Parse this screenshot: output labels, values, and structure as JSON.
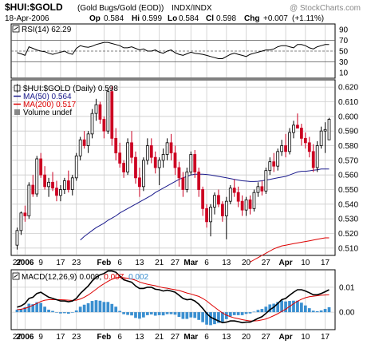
{
  "header": {
    "symbol": "$HUI:$GOLD",
    "name": "(Gold Bugs/Gold (EOD))",
    "exchange": "INDX/INDX",
    "watermark": "@ StockCharts.com",
    "date": "18-Apr-2006",
    "op_label": "Op",
    "op": "0.584",
    "hi_label": "Hi",
    "hi": "0.599",
    "lo_label": "Lo",
    "lo": "0.584",
    "cl_label": "Cl",
    "cl": "0.598",
    "chg_label": "Chg",
    "chg": "+0.007",
    "chg_pct": "(+1.11%)"
  },
  "colors": {
    "up": "#000000",
    "down": "#cc0022",
    "ma50": "#1a1a8c",
    "ma200": "#dd0000",
    "macd": "#000000",
    "signal": "#dd0000",
    "hist": "#3a8fd0",
    "grid": "#cccccc"
  },
  "x_axis": {
    "ticks": [
      {
        "label": "27",
        "i": 0
      },
      {
        "label": "2006",
        "i": 2,
        "bold": true
      },
      {
        "label": "9",
        "i": 6
      },
      {
        "label": "17",
        "i": 11
      },
      {
        "label": "23",
        "i": 15
      },
      {
        "label": "Feb",
        "i": 22,
        "bold": true
      },
      {
        "label": "6",
        "i": 26
      },
      {
        "label": "13",
        "i": 31
      },
      {
        "label": "21",
        "i": 36
      },
      {
        "label": "27",
        "i": 40
      },
      {
        "label": "Mar",
        "i": 44,
        "bold": true
      },
      {
        "label": "6",
        "i": 48
      },
      {
        "label": "13",
        "i": 53
      },
      {
        "label": "20",
        "i": 58
      },
      {
        "label": "27",
        "i": 63
      },
      {
        "label": "Apr",
        "i": 68,
        "bold": true
      },
      {
        "label": "10",
        "i": 73
      },
      {
        "label": "17",
        "i": 78
      }
    ]
  },
  "chart_data": [
    {
      "type": "line",
      "title": "RSI(14) 62.29",
      "ylim": [
        0,
        100
      ],
      "yticks": [
        10,
        30,
        50,
        70,
        90
      ],
      "ref_lines": [
        30,
        50,
        70
      ],
      "series": [
        {
          "name": "RSI(14)",
          "values": [
            47,
            45,
            42,
            58,
            55,
            52,
            50,
            49,
            46,
            44,
            46,
            48,
            50,
            46,
            44,
            55,
            60,
            58,
            57,
            59,
            62,
            64,
            66,
            66,
            64,
            62,
            60,
            56,
            56,
            58,
            55,
            52,
            54,
            50,
            50,
            52,
            48,
            46,
            50,
            52,
            47,
            44,
            42,
            45,
            48,
            46,
            45,
            44,
            42,
            40,
            38,
            36,
            36,
            40,
            44,
            46,
            44,
            42,
            40,
            44,
            46,
            48,
            50,
            52,
            52,
            54,
            58,
            60,
            60,
            58,
            56,
            62,
            62,
            60,
            56,
            54,
            58,
            60,
            62,
            62
          ]
        }
      ]
    },
    {
      "type": "candlestick",
      "title": "$HUI:$GOLD (Daily) 0.598",
      "ylim": [
        0.505,
        0.625
      ],
      "yticks": [
        0.51,
        0.52,
        0.53,
        0.54,
        0.55,
        0.56,
        0.57,
        0.58,
        0.59,
        0.6,
        0.61,
        0.62
      ],
      "legend": [
        {
          "label": "$HUI:$GOLD (Daily) 0.598",
          "color_key": "up"
        },
        {
          "label": "MA(50) 0.564",
          "color_key": "ma50"
        },
        {
          "label": "MA(200) 0.517",
          "color_key": "ma200"
        },
        {
          "label": "Volume undef",
          "color_key": "up"
        }
      ],
      "ohlc": [
        [
          0.512,
          0.524,
          0.509,
          0.522
        ],
        [
          0.522,
          0.535,
          0.519,
          0.534
        ],
        [
          0.534,
          0.539,
          0.528,
          0.532
        ],
        [
          0.532,
          0.555,
          0.53,
          0.553
        ],
        [
          0.553,
          0.56,
          0.545,
          0.547
        ],
        [
          0.547,
          0.573,
          0.545,
          0.571
        ],
        [
          0.571,
          0.575,
          0.558,
          0.56
        ],
        [
          0.56,
          0.566,
          0.55,
          0.552
        ],
        [
          0.552,
          0.558,
          0.545,
          0.555
        ],
        [
          0.555,
          0.562,
          0.549,
          0.551
        ],
        [
          0.551,
          0.556,
          0.542,
          0.546
        ],
        [
          0.546,
          0.553,
          0.542,
          0.55
        ],
        [
          0.55,
          0.558,
          0.547,
          0.556
        ],
        [
          0.556,
          0.563,
          0.548,
          0.55
        ],
        [
          0.55,
          0.56,
          0.546,
          0.558
        ],
        [
          0.558,
          0.575,
          0.556,
          0.573
        ],
        [
          0.573,
          0.586,
          0.57,
          0.584
        ],
        [
          0.584,
          0.59,
          0.578,
          0.58
        ],
        [
          0.58,
          0.59,
          0.575,
          0.588
        ],
        [
          0.588,
          0.605,
          0.585,
          0.602
        ],
        [
          0.602,
          0.612,
          0.597,
          0.608
        ],
        [
          0.608,
          0.61,
          0.595,
          0.598
        ],
        [
          0.598,
          0.6,
          0.585,
          0.59
        ],
        [
          0.59,
          0.619,
          0.588,
          0.617
        ],
        [
          0.617,
          0.621,
          0.58,
          0.585
        ],
        [
          0.585,
          0.592,
          0.57,
          0.575
        ],
        [
          0.575,
          0.582,
          0.565,
          0.568
        ],
        [
          0.568,
          0.57,
          0.558,
          0.562
        ],
        [
          0.562,
          0.585,
          0.56,
          0.582
        ],
        [
          0.582,
          0.59,
          0.568,
          0.572
        ],
        [
          0.572,
          0.576,
          0.554,
          0.558
        ],
        [
          0.558,
          0.565,
          0.545,
          0.552
        ],
        [
          0.552,
          0.572,
          0.549,
          0.57
        ],
        [
          0.57,
          0.585,
          0.567,
          0.58
        ],
        [
          0.58,
          0.585,
          0.568,
          0.572
        ],
        [
          0.572,
          0.576,
          0.561,
          0.565
        ],
        [
          0.565,
          0.572,
          0.553,
          0.57
        ],
        [
          0.57,
          0.578,
          0.565,
          0.574
        ],
        [
          0.574,
          0.585,
          0.57,
          0.582
        ],
        [
          0.582,
          0.588,
          0.57,
          0.575
        ],
        [
          0.575,
          0.58,
          0.56,
          0.565
        ],
        [
          0.565,
          0.569,
          0.552,
          0.558
        ],
        [
          0.558,
          0.562,
          0.545,
          0.55
        ],
        [
          0.55,
          0.565,
          0.548,
          0.562
        ],
        [
          0.562,
          0.576,
          0.56,
          0.574
        ],
        [
          0.574,
          0.577,
          0.558,
          0.562
        ],
        [
          0.562,
          0.565,
          0.545,
          0.55
        ],
        [
          0.55,
          0.552,
          0.532,
          0.537
        ],
        [
          0.537,
          0.54,
          0.524,
          0.528
        ],
        [
          0.528,
          0.54,
          0.518,
          0.538
        ],
        [
          0.538,
          0.548,
          0.533,
          0.546
        ],
        [
          0.546,
          0.55,
          0.538,
          0.54
        ],
        [
          0.54,
          0.542,
          0.528,
          0.532
        ],
        [
          0.532,
          0.545,
          0.516,
          0.542
        ],
        [
          0.542,
          0.553,
          0.54,
          0.551
        ],
        [
          0.551,
          0.557,
          0.545,
          0.548
        ],
        [
          0.548,
          0.552,
          0.538,
          0.542
        ],
        [
          0.542,
          0.546,
          0.532,
          0.536
        ],
        [
          0.536,
          0.545,
          0.532,
          0.543
        ],
        [
          0.543,
          0.546,
          0.533,
          0.537
        ],
        [
          0.537,
          0.55,
          0.535,
          0.548
        ],
        [
          0.548,
          0.555,
          0.545,
          0.552
        ],
        [
          0.552,
          0.556,
          0.546,
          0.549
        ],
        [
          0.549,
          0.565,
          0.547,
          0.563
        ],
        [
          0.563,
          0.572,
          0.56,
          0.569
        ],
        [
          0.569,
          0.575,
          0.562,
          0.566
        ],
        [
          0.566,
          0.578,
          0.563,
          0.576
        ],
        [
          0.576,
          0.584,
          0.573,
          0.58
        ],
        [
          0.58,
          0.588,
          0.572,
          0.576
        ],
        [
          0.576,
          0.592,
          0.574,
          0.589
        ],
        [
          0.589,
          0.597,
          0.585,
          0.594
        ],
        [
          0.594,
          0.602,
          0.592,
          0.592
        ],
        [
          0.592,
          0.595,
          0.58,
          0.585
        ],
        [
          0.585,
          0.589,
          0.578,
          0.582
        ],
        [
          0.582,
          0.586,
          0.572,
          0.576
        ],
        [
          0.576,
          0.581,
          0.562,
          0.565
        ],
        [
          0.565,
          0.583,
          0.562,
          0.58
        ],
        [
          0.58,
          0.593,
          0.578,
          0.59
        ],
        [
          0.59,
          0.596,
          0.575,
          0.591
        ],
        [
          0.584,
          0.599,
          0.584,
          0.598
        ]
      ],
      "ma50": [
        null,
        null,
        null,
        null,
        null,
        null,
        null,
        null,
        null,
        null,
        null,
        null,
        null,
        null,
        null,
        null,
        0.5155,
        0.518,
        0.52,
        0.522,
        0.524,
        0.5255,
        0.527,
        0.529,
        0.5305,
        0.532,
        0.534,
        0.5355,
        0.537,
        0.5385,
        0.54,
        0.5415,
        0.543,
        0.5445,
        0.546,
        0.548,
        0.5495,
        0.551,
        0.5525,
        0.554,
        0.5555,
        0.557,
        0.558,
        0.559,
        0.56,
        0.5605,
        0.5605,
        0.5605,
        0.5603,
        0.56,
        0.5595,
        0.559,
        0.5585,
        0.558,
        0.5575,
        0.557,
        0.5565,
        0.556,
        0.5558,
        0.5555,
        0.5555,
        0.5557,
        0.556,
        0.5565,
        0.557,
        0.5575,
        0.558,
        0.5585,
        0.559,
        0.56,
        0.561,
        0.562,
        0.5625,
        0.5625,
        0.5628,
        0.5632,
        0.5635,
        0.564,
        0.564,
        0.564
      ],
      "ma200": [
        null,
        null,
        null,
        null,
        null,
        null,
        null,
        null,
        null,
        null,
        null,
        null,
        null,
        null,
        null,
        null,
        null,
        null,
        null,
        null,
        null,
        null,
        null,
        null,
        null,
        null,
        null,
        null,
        null,
        null,
        null,
        null,
        null,
        null,
        null,
        null,
        null,
        null,
        null,
        null,
        null,
        null,
        null,
        null,
        null,
        null,
        null,
        null,
        null,
        null,
        null,
        null,
        null,
        null,
        null,
        null,
        null,
        null,
        null,
        0.5005,
        0.502,
        0.5035,
        0.505,
        0.5065,
        0.508,
        0.5095,
        0.5105,
        0.5115,
        0.512,
        0.5125,
        0.513,
        0.5135,
        0.514,
        0.5145,
        0.515,
        0.5155,
        0.516,
        0.5165,
        0.517,
        0.517
      ]
    },
    {
      "type": "line",
      "title": "MACD(12,26,9)",
      "title_values": [
        "0.009,",
        "0.007,",
        "0.002"
      ],
      "ylim": [
        -0.007,
        0.017
      ],
      "yticks": [
        0,
        0.01
      ],
      "ytick_labels": [
        "0.00",
        "0.01"
      ],
      "series": [
        {
          "name": "MACD(12,26,9)",
          "color_key": "macd",
          "values": [
            0.002,
            0.0025,
            0.0035,
            0.0055,
            0.006,
            0.0075,
            0.008,
            0.007,
            0.006,
            0.0055,
            0.005,
            0.0045,
            0.0045,
            0.0042,
            0.0045,
            0.0055,
            0.0075,
            0.009,
            0.0105,
            0.0125,
            0.014,
            0.015,
            0.0155,
            0.0165,
            0.0165,
            0.016,
            0.0145,
            0.013,
            0.0125,
            0.012,
            0.0105,
            0.0095,
            0.0095,
            0.01,
            0.01,
            0.0092,
            0.009,
            0.0085,
            0.0088,
            0.0085,
            0.008,
            0.0068,
            0.0055,
            0.005,
            0.0052,
            0.0045,
            0.0032,
            0.0015,
            -0.0005,
            -0.002,
            -0.0028,
            -0.0035,
            -0.0042,
            -0.004,
            -0.0035,
            -0.0035,
            -0.0038,
            -0.0042,
            -0.004,
            -0.004,
            -0.0033,
            -0.0025,
            -0.0018,
            -0.0005,
            0.001,
            0.002,
            0.0035,
            0.005,
            0.0055,
            0.0068,
            0.008,
            0.009,
            0.009,
            0.0085,
            0.0078,
            0.007,
            0.007,
            0.0075,
            0.0082,
            0.009
          ]
        },
        {
          "name": "Signal",
          "color_key": "signal",
          "values": [
            0.001,
            0.0012,
            0.0015,
            0.0021,
            0.0028,
            0.0035,
            0.0043,
            0.0048,
            0.005,
            0.005,
            0.005,
            0.005,
            0.0049,
            0.0048,
            0.0047,
            0.0048,
            0.0053,
            0.006,
            0.0069,
            0.008,
            0.0092,
            0.0104,
            0.0114,
            0.0124,
            0.0132,
            0.0138,
            0.014,
            0.0138,
            0.0136,
            0.0133,
            0.0128,
            0.0121,
            0.0116,
            0.0112,
            0.0109,
            0.0106,
            0.0102,
            0.0098,
            0.0096,
            0.0093,
            0.009,
            0.0087,
            0.0082,
            0.0077,
            0.0073,
            0.0068,
            0.0063,
            0.0055,
            0.0045,
            0.0032,
            0.002,
            0.0008,
            -0.0003,
            -0.0012,
            -0.0018,
            -0.0023,
            -0.0026,
            -0.003,
            -0.0033,
            -0.0035,
            -0.0035,
            -0.0034,
            -0.0031,
            -0.0027,
            -0.0021,
            -0.0014,
            -0.0006,
            0.0003,
            0.0012,
            0.0023,
            0.0034,
            0.0044,
            0.0052,
            0.0058,
            0.0062,
            0.0064,
            0.0066,
            0.0068,
            0.0069,
            0.007
          ]
        }
      ]
    }
  ]
}
